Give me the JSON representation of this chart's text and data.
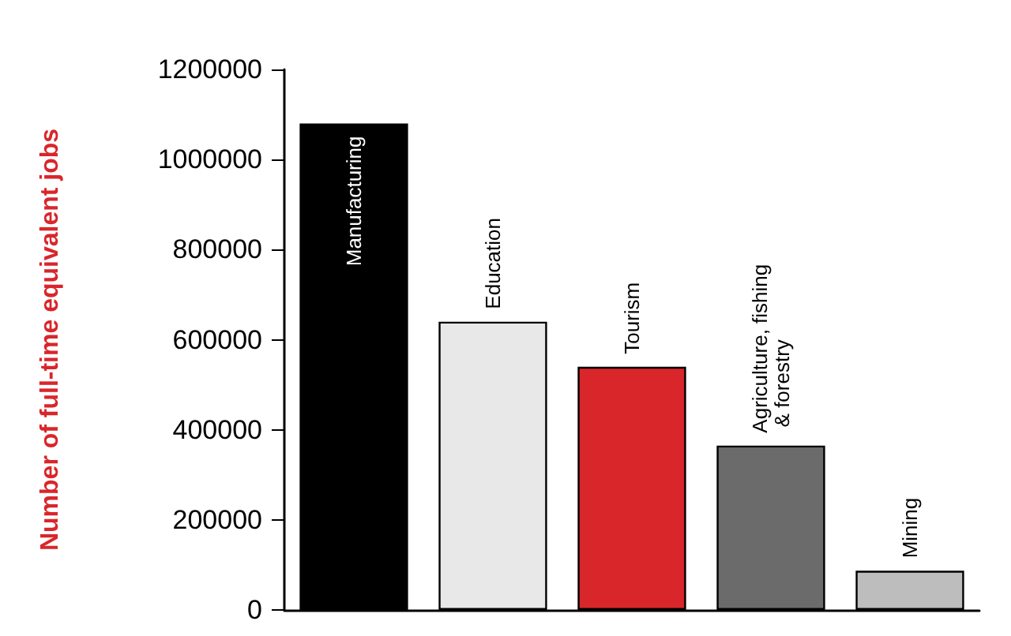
{
  "chart_data": {
    "type": "bar",
    "ylabel": "Number of full-time equivalent jobs",
    "categories": [
      "Manufacturing",
      "Education",
      "Tourism",
      "Agriculture, fishing & forestry",
      "Mining"
    ],
    "values": [
      1080000,
      640000,
      540000,
      365000,
      87000
    ],
    "colors": [
      "#000000",
      "#e8e8e8",
      "#d9262b",
      "#6b6b6b",
      "#bdbdbd"
    ],
    "ylim": [
      0,
      1200000
    ],
    "yticks": [
      0,
      200000,
      400000,
      600000,
      800000,
      1000000,
      1200000
    ],
    "grid": false
  }
}
